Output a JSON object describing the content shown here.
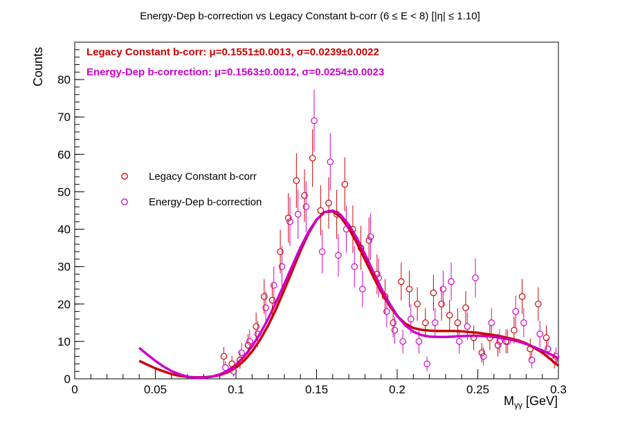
{
  "chart_data": {
    "type": "scatter",
    "title": "Energy-Dep b-correction vs Legacy Constant b-corr   (6 ≤ E < 8)   [|η| ≤ 1.10]",
    "xlabel_main": "M",
    "xlabel_sub": "γγ",
    "xlabel_unit": " [GeV]",
    "ylabel": "Counts",
    "xlim": [
      0,
      0.3
    ],
    "ylim": [
      0,
      90
    ],
    "xticks": [
      0,
      0.05,
      0.1,
      0.15,
      0.2,
      0.25,
      0.3
    ],
    "xtick_labels": [
      "0",
      "0.05",
      "0.1",
      "0.15",
      "0.2",
      "0.25",
      "0.3"
    ],
    "yticks": [
      0,
      10,
      20,
      30,
      40,
      50,
      60,
      70,
      80
    ],
    "ytick_labels": [
      "0",
      "10",
      "20",
      "30",
      "40",
      "50",
      "60",
      "70",
      "80"
    ],
    "fit_texts": [
      {
        "text": "Legacy Constant b-corr: μ=0.1551±0.0013,  σ=0.0239±0.0022",
        "color": "#cc0000"
      },
      {
        "text": "Energy-Dep b-correction: μ=0.1563±0.0012,  σ=0.0254±0.0023",
        "color": "#cc00cc"
      }
    ],
    "legend": {
      "placement": "left-middle",
      "entries": [
        {
          "label": "Legacy Constant b-corr",
          "color": "#cc0000"
        },
        {
          "label": "Energy-Dep b-correction",
          "color": "#cc00cc"
        }
      ]
    },
    "series": [
      {
        "name": "Legacy Constant b-corr",
        "color": "#cc0000",
        "marker": "open-circle",
        "x": [
          0.0925,
          0.0975,
          0.1025,
          0.1075,
          0.1125,
          0.1175,
          0.1225,
          0.1275,
          0.1325,
          0.1375,
          0.1425,
          0.1475,
          0.1525,
          0.1575,
          0.1625,
          0.1675,
          0.1725,
          0.1775,
          0.1825,
          0.1875,
          0.1925,
          0.1975,
          0.2025,
          0.2075,
          0.2125,
          0.2175,
          0.2225,
          0.2275,
          0.2325,
          0.2375,
          0.2425,
          0.2475,
          0.2525,
          0.2575,
          0.2625,
          0.2675,
          0.2725,
          0.2775,
          0.2825,
          0.2875,
          0.2925,
          0.2975
        ],
        "y": [
          6,
          4,
          5,
          9,
          14,
          22,
          21,
          34,
          43,
          53,
          49,
          59,
          45,
          47,
          44,
          52,
          40,
          35,
          37,
          28,
          22,
          15,
          26,
          24,
          20,
          15,
          23,
          20,
          17,
          15,
          19,
          11,
          7,
          11,
          9,
          10,
          13,
          22,
          8,
          20,
          11,
          5
        ],
        "yerr_up": [
          2.5,
          2.1,
          2.3,
          3.0,
          3.7,
          4.7,
          4.6,
          5.8,
          6.6,
          7.3,
          7.0,
          7.7,
          6.7,
          6.9,
          6.6,
          7.2,
          6.3,
          5.9,
          6.1,
          5.3,
          4.7,
          3.9,
          5.1,
          4.9,
          4.5,
          3.9,
          4.8,
          4.5,
          4.1,
          3.9,
          4.4,
          3.3,
          2.6,
          3.3,
          3.0,
          3.2,
          3.6,
          4.7,
          2.8,
          4.5,
          3.3,
          2.2
        ],
        "fit_x": [
          0.04,
          0.045,
          0.05,
          0.055,
          0.06,
          0.065,
          0.07,
          0.075,
          0.08,
          0.085,
          0.09,
          0.095,
          0.1,
          0.105,
          0.11,
          0.115,
          0.12,
          0.125,
          0.13,
          0.135,
          0.14,
          0.145,
          0.15,
          0.155,
          0.16,
          0.165,
          0.17,
          0.175,
          0.18,
          0.185,
          0.19,
          0.195,
          0.2,
          0.205,
          0.21,
          0.215,
          0.22,
          0.225,
          0.23,
          0.235,
          0.24,
          0.245,
          0.25,
          0.255,
          0.26,
          0.265,
          0.27,
          0.275,
          0.28,
          0.285,
          0.29,
          0.295,
          0.3
        ],
        "fit_y": [
          4.8,
          3.8,
          2.8,
          2.0,
          1.3,
          0.8,
          0.5,
          0.4,
          0.4,
          0.6,
          1.0,
          1.8,
          3.0,
          4.8,
          7.3,
          10.5,
          14.3,
          18.8,
          23.8,
          29.0,
          34.2,
          38.9,
          42.5,
          44.6,
          44.8,
          43.2,
          40.2,
          36.3,
          31.9,
          27.5,
          23.3,
          19.7,
          16.8,
          14.8,
          13.6,
          13.1,
          12.9,
          12.8,
          12.8,
          12.8,
          12.7,
          12.5,
          12.3,
          12.0,
          11.7,
          11.3,
          10.8,
          10.3,
          9.5,
          8.3,
          7.0,
          5.3,
          3.5
        ]
      },
      {
        "name": "Energy-Dep b-correction",
        "color": "#cc00cc",
        "marker": "open-circle",
        "x": [
          0.0935,
          0.0985,
          0.1035,
          0.1085,
          0.1135,
          0.1185,
          0.1235,
          0.1285,
          0.1335,
          0.1385,
          0.1435,
          0.1485,
          0.1535,
          0.1585,
          0.1635,
          0.1685,
          0.1735,
          0.1785,
          0.1835,
          0.1885,
          0.1935,
          0.1985,
          0.2035,
          0.2085,
          0.2135,
          0.2185,
          0.2235,
          0.2285,
          0.2335,
          0.2385,
          0.2435,
          0.2485,
          0.2535,
          0.2585,
          0.2635,
          0.2685,
          0.2735,
          0.2785,
          0.2835,
          0.2885,
          0.2935,
          0.2985
        ],
        "y": [
          3,
          2,
          7,
          10,
          12,
          19,
          25,
          30,
          42,
          44,
          46,
          69,
          34,
          58,
          33,
          40,
          30,
          24,
          38,
          27,
          18,
          13,
          10,
          16,
          10,
          4,
          15,
          24,
          26,
          10,
          14,
          27,
          6,
          15,
          10,
          10,
          18,
          15,
          5,
          12,
          8,
          6
        ],
        "yerr_up": [
          1.7,
          1.4,
          2.6,
          3.2,
          3.5,
          4.4,
          5.0,
          5.5,
          6.5,
          6.6,
          6.8,
          8.3,
          5.8,
          7.6,
          5.7,
          6.3,
          5.5,
          4.9,
          6.2,
          5.2,
          4.2,
          3.6,
          3.2,
          4.0,
          3.2,
          2.0,
          3.9,
          4.9,
          5.1,
          3.2,
          3.7,
          5.2,
          2.4,
          3.9,
          3.2,
          3.2,
          4.2,
          3.9,
          2.2,
          3.5,
          2.8,
          2.4
        ],
        "fit_x": [
          0.04,
          0.045,
          0.05,
          0.055,
          0.06,
          0.065,
          0.07,
          0.075,
          0.08,
          0.085,
          0.09,
          0.095,
          0.1,
          0.105,
          0.11,
          0.115,
          0.12,
          0.125,
          0.13,
          0.135,
          0.14,
          0.145,
          0.15,
          0.155,
          0.16,
          0.165,
          0.17,
          0.175,
          0.18,
          0.185,
          0.19,
          0.195,
          0.2,
          0.205,
          0.21,
          0.215,
          0.22,
          0.225,
          0.23,
          0.235,
          0.24,
          0.245,
          0.25,
          0.255,
          0.26,
          0.265,
          0.27,
          0.275,
          0.28,
          0.285,
          0.29,
          0.295,
          0.3
        ],
        "fit_y": [
          8.3,
          6.5,
          4.8,
          3.3,
          2.1,
          1.2,
          0.6,
          0.3,
          0.3,
          0.6,
          1.2,
          2.2,
          3.8,
          5.9,
          8.7,
          12.1,
          16.1,
          20.6,
          25.4,
          30.3,
          35.1,
          39.3,
          42.6,
          44.6,
          45.0,
          43.8,
          41.2,
          37.6,
          33.3,
          28.8,
          24.3,
          20.3,
          16.9,
          14.3,
          12.6,
          11.7,
          11.3,
          11.2,
          11.2,
          11.3,
          11.4,
          11.5,
          11.5,
          11.4,
          11.2,
          10.9,
          10.5,
          10.0,
          9.3,
          8.5,
          7.6,
          6.6,
          5.5
        ]
      }
    ]
  }
}
